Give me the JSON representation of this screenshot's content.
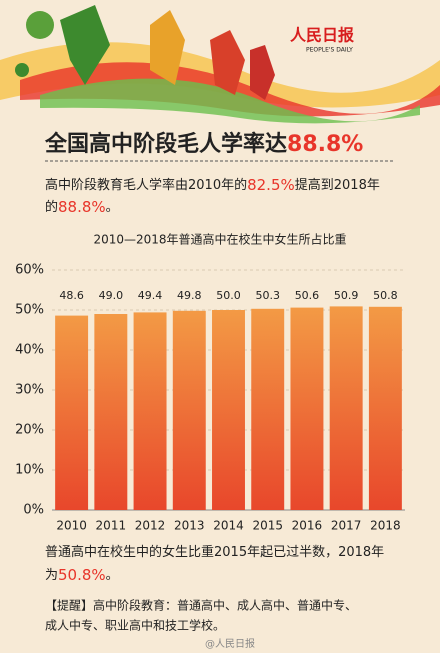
{
  "header": {
    "logo": "人民日报",
    "logo_en": "PEOPLE'S DAILY",
    "headline": [
      "全国高中阶段毛人学率达",
      "88.8%"
    ]
  },
  "intro": [
    "高中阶段教育毛人学率由2010年的",
    "82.5%",
    "提高到2018年",
    "的",
    "88.8%",
    "。"
  ],
  "chart_data": {
    "type": "bar",
    "title": "2010—2018年普通高中在校生中女生所占比重",
    "categories": [
      "2010",
      "2011",
      "2012",
      "2013",
      "2014",
      "2015",
      "2016",
      "2017",
      "2018"
    ],
    "values": [
      48.6,
      49.0,
      49.4,
      49.8,
      50.0,
      50.3,
      50.6,
      50.9,
      50.8
    ],
    "value_labels": [
      "48.6",
      "49.0",
      "49.4",
      "49.8",
      "50.0",
      "50.3",
      "50.6",
      "50.9",
      "50.8"
    ],
    "ylim": [
      0,
      60
    ],
    "yticks": [
      {
        "value": 0,
        "label": "0%"
      },
      {
        "value": 10,
        "label": "10%"
      },
      {
        "value": 20,
        "label": "20%"
      },
      {
        "value": 30,
        "label": "30%"
      },
      {
        "value": 40,
        "label": "40%"
      },
      {
        "value": 50,
        "label": "50%"
      },
      {
        "value": 60,
        "label": "60%"
      }
    ],
    "grid": true
  },
  "conclusion": [
    "普通高中在校生中的女生比重2015年起已过半数，2018年",
    "为",
    "50.8%",
    "。"
  ],
  "note": [
    "【提醒】高中阶段教育：普通高中、成人高中、普通中专、",
    "成人中专、职业高中和技工学校。"
  ],
  "watermark": "@人民日报"
}
